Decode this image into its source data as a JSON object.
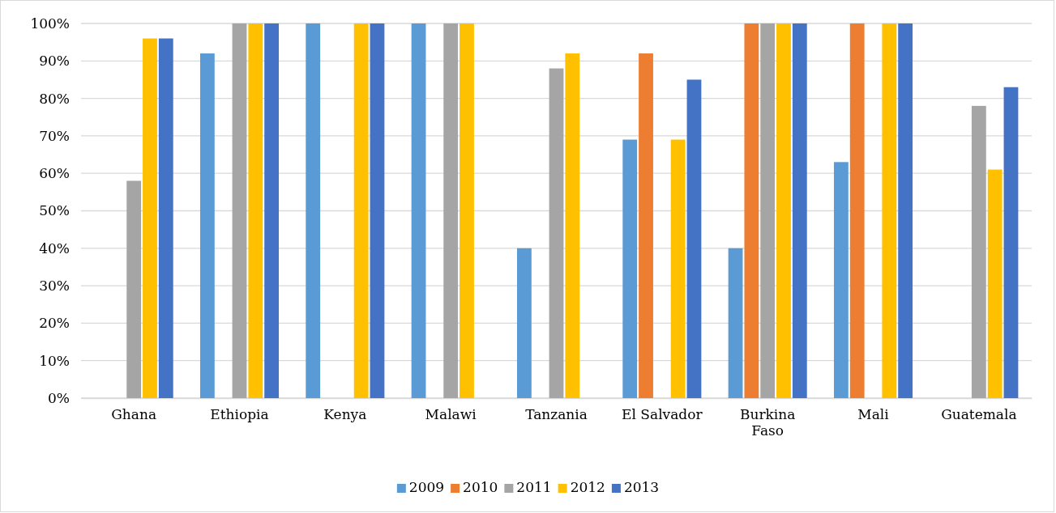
{
  "chart_data": {
    "type": "bar",
    "categories": [
      "Ghana",
      "Ethiopia",
      "Kenya",
      "Malawi",
      "Tanzania",
      "El Salvador",
      "Burkina Faso",
      "Mali",
      "Guatemala"
    ],
    "series": [
      {
        "name": "2009",
        "color": "#5b9bd5",
        "values": [
          null,
          92,
          100,
          100,
          40,
          69,
          40,
          63,
          null
        ]
      },
      {
        "name": "2010",
        "color": "#ed7d31",
        "values": [
          null,
          null,
          null,
          null,
          null,
          92,
          100,
          100,
          null
        ]
      },
      {
        "name": "2011",
        "color": "#a5a5a5",
        "values": [
          58,
          100,
          null,
          100,
          88,
          null,
          100,
          null,
          78
        ]
      },
      {
        "name": "2012",
        "color": "#ffc000",
        "values": [
          96,
          100,
          100,
          100,
          92,
          69,
          100,
          100,
          61
        ]
      },
      {
        "name": "2013",
        "color": "#4472c4",
        "values": [
          96,
          100,
          100,
          null,
          null,
          85,
          100,
          100,
          83
        ]
      }
    ],
    "ylim": [
      0,
      100
    ],
    "yticks": [
      {
        "value": 0,
        "label": "0%"
      },
      {
        "value": 10,
        "label": "10%"
      },
      {
        "value": 20,
        "label": "20%"
      },
      {
        "value": 30,
        "label": "30%"
      },
      {
        "value": 40,
        "label": "40%"
      },
      {
        "value": 50,
        "label": "50%"
      },
      {
        "value": 60,
        "label": "60%"
      },
      {
        "value": 70,
        "label": "70%"
      },
      {
        "value": 80,
        "label": "80%"
      },
      {
        "value": 90,
        "label": "90%"
      },
      {
        "value": 100,
        "label": "100%"
      }
    ],
    "grid": "y",
    "legend": "bottom"
  }
}
